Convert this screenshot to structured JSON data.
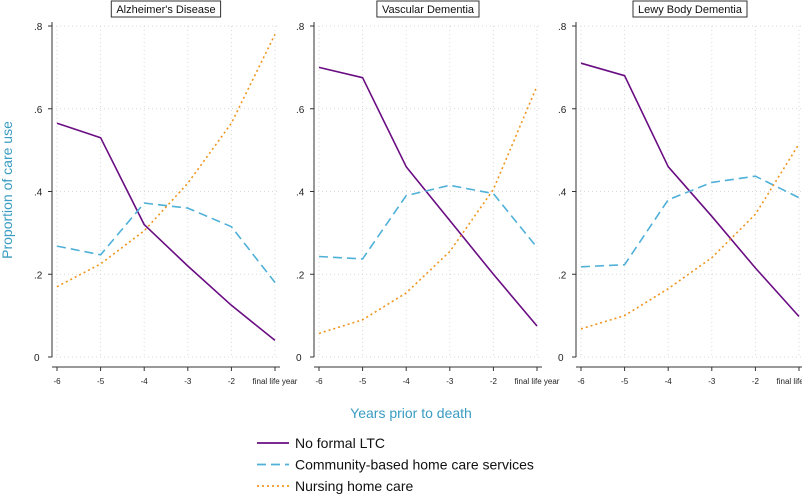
{
  "colors": {
    "no_formal_ltc": "#6a0d83",
    "community": "#4fb0d8",
    "nursing": "#f0961e",
    "axis_title": "#3a9cc2",
    "grid": "#d9d9d9"
  },
  "chart_data": {
    "type": "line",
    "ylabel": "Proportion of care use",
    "xlabel": "Years prior to death",
    "ylim": [
      0,
      0.8
    ],
    "yticks": [
      {
        "value": 0,
        "label": "0"
      },
      {
        "value": 0.2,
        "label": ".2"
      },
      {
        "value": 0.4,
        "label": ".4"
      },
      {
        "value": 0.6,
        "label": ".6"
      },
      {
        "value": 0.8,
        "label": ".8"
      }
    ],
    "x_categories": [
      "-6",
      "-5",
      "-4",
      "-3",
      "-2",
      "final life year"
    ],
    "legend": [
      {
        "key": "no_formal_ltc",
        "label": "No formal LTC",
        "style": "solid"
      },
      {
        "key": "community",
        "label": "Community-based home care services",
        "style": "dashed"
      },
      {
        "key": "nursing",
        "label": "Nursing home care",
        "style": "dotted"
      }
    ],
    "panels": [
      {
        "title": "Alzheimer's Disease",
        "series": [
          {
            "key": "no_formal_ltc",
            "name": "No formal LTC",
            "values": [
              0.565,
              0.53,
              0.32,
              0.22,
              0.125,
              0.04
            ]
          },
          {
            "key": "community",
            "name": "Community-based home care services",
            "values": [
              0.268,
              0.247,
              0.372,
              0.36,
              0.315,
              0.18
            ]
          },
          {
            "key": "nursing",
            "name": "Nursing home care",
            "values": [
              0.17,
              0.225,
              0.305,
              0.42,
              0.565,
              0.78
            ]
          }
        ]
      },
      {
        "title": "Vascular Dementia",
        "series": [
          {
            "key": "no_formal_ltc",
            "name": "No formal LTC",
            "values": [
              0.7,
              0.675,
              0.46,
              0.33,
              0.2,
              0.075
            ]
          },
          {
            "key": "community",
            "name": "Community-based home care services",
            "values": [
              0.243,
              0.237,
              0.39,
              0.415,
              0.395,
              0.265
            ]
          },
          {
            "key": "nursing",
            "name": "Nursing home care",
            "values": [
              0.057,
              0.09,
              0.155,
              0.255,
              0.405,
              0.655
            ]
          }
        ]
      },
      {
        "title": "Lewy Body Dementia",
        "series": [
          {
            "key": "no_formal_ltc",
            "name": "No formal LTC",
            "values": [
              0.71,
              0.68,
              0.46,
              0.34,
              0.215,
              0.098
            ]
          },
          {
            "key": "community",
            "name": "Community-based home care services",
            "values": [
              0.218,
              0.223,
              0.38,
              0.422,
              0.437,
              0.385
            ]
          },
          {
            "key": "nursing",
            "name": "Nursing home care",
            "values": [
              0.068,
              0.1,
              0.165,
              0.24,
              0.345,
              0.515
            ]
          }
        ]
      }
    ]
  }
}
